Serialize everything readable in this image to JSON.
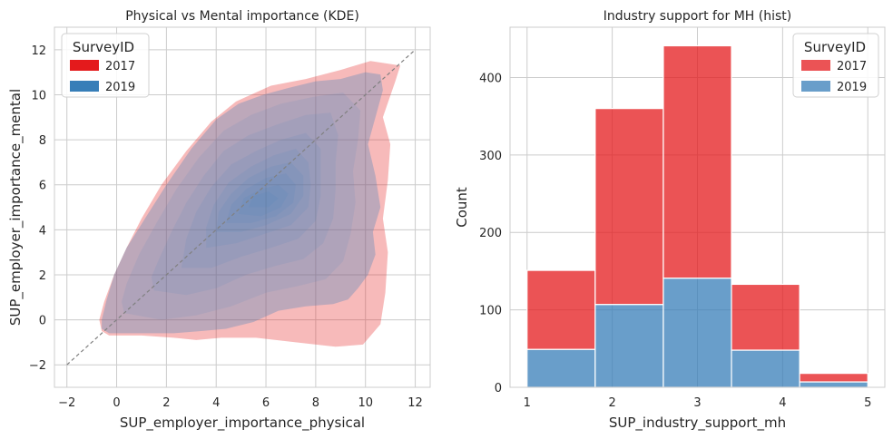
{
  "chart_data": [
    {
      "type": "kde",
      "title": "Physical vs Mental importance (KDE)",
      "xlabel": "SUP_employer_importance_physical",
      "ylabel": "SUP_employer_importance_mental",
      "xlim": [
        -2.5,
        12.6
      ],
      "ylim": [
        -3.0,
        13.0
      ],
      "xticks": [
        -2,
        0,
        2,
        4,
        6,
        8,
        10,
        12
      ],
      "yticks": [
        -2,
        0,
        2,
        4,
        6,
        8,
        10,
        12
      ],
      "grid": true,
      "legend": {
        "title": "SurveyID",
        "position": "top-left",
        "entries": [
          "2017",
          "2019"
        ]
      },
      "reference_line": {
        "from": [
          -2,
          -2
        ],
        "to": [
          12,
          12
        ],
        "style": "dashed",
        "color": "#808080"
      },
      "series": [
        {
          "name": "2017",
          "color": "#e41a1c",
          "levels": [
            {
              "opacity": 0.3,
              "points": [
                [
                  -0.3,
                  -0.7
                ],
                [
                  1.0,
                  -0.7
                ],
                [
                  2.3,
                  -0.8
                ],
                [
                  3.2,
                  -0.9
                ],
                [
                  4.2,
                  -0.8
                ],
                [
                  5.6,
                  -0.8
                ],
                [
                  7.2,
                  -1.0
                ],
                [
                  8.8,
                  -1.2
                ],
                [
                  9.9,
                  -1.1
                ],
                [
                  10.6,
                  -0.2
                ],
                [
                  10.8,
                  1.2
                ],
                [
                  10.9,
                  3.0
                ],
                [
                  10.7,
                  4.5
                ],
                [
                  10.9,
                  6.2
                ],
                [
                  11.0,
                  7.8
                ],
                [
                  10.7,
                  9.0
                ],
                [
                  11.2,
                  10.6
                ],
                [
                  11.4,
                  11.3
                ],
                [
                  10.2,
                  11.5
                ],
                [
                  9.0,
                  11.1
                ],
                [
                  7.6,
                  10.7
                ],
                [
                  6.2,
                  10.4
                ],
                [
                  4.8,
                  9.7
                ],
                [
                  3.8,
                  8.8
                ],
                [
                  2.8,
                  7.5
                ],
                [
                  1.8,
                  6.0
                ],
                [
                  1.0,
                  4.5
                ],
                [
                  0.4,
                  3.2
                ],
                [
                  -0.1,
                  2.0
                ],
                [
                  -0.5,
                  0.8
                ],
                [
                  -0.7,
                  0.0
                ],
                [
                  -0.6,
                  -0.5
                ]
              ]
            }
          ]
        },
        {
          "name": "2019",
          "color": "#377eb8",
          "levels": [
            {
              "opacity": 0.3,
              "points": [
                [
                  -0.3,
                  -0.6
                ],
                [
                  1.0,
                  -0.6
                ],
                [
                  2.3,
                  -0.6
                ],
                [
                  3.4,
                  -0.5
                ],
                [
                  4.4,
                  -0.4
                ],
                [
                  5.5,
                  -0.1
                ],
                [
                  6.5,
                  0.4
                ],
                [
                  7.6,
                  0.6
                ],
                [
                  8.7,
                  0.7
                ],
                [
                  9.3,
                  0.9
                ],
                [
                  9.7,
                  1.4
                ],
                [
                  10.1,
                  2.0
                ],
                [
                  10.4,
                  2.9
                ],
                [
                  10.3,
                  3.9
                ],
                [
                  10.6,
                  5.0
                ],
                [
                  10.4,
                  6.4
                ],
                [
                  10.1,
                  7.8
                ],
                [
                  10.4,
                  9.0
                ],
                [
                  10.7,
                  10.2
                ],
                [
                  10.6,
                  10.9
                ],
                [
                  10.0,
                  11.0
                ],
                [
                  9.0,
                  10.7
                ],
                [
                  8.0,
                  10.6
                ],
                [
                  6.9,
                  10.3
                ],
                [
                  5.9,
                  10.0
                ],
                [
                  4.9,
                  9.6
                ],
                [
                  4.0,
                  8.9
                ],
                [
                  3.0,
                  7.6
                ],
                [
                  2.0,
                  6.0
                ],
                [
                  1.2,
                  4.6
                ],
                [
                  0.4,
                  3.2
                ],
                [
                  -0.1,
                  2.0
                ],
                [
                  -0.4,
                  0.9
                ],
                [
                  -0.6,
                  0.0
                ],
                [
                  -0.6,
                  -0.4
                ]
              ]
            },
            {
              "opacity": 0.1,
              "points": [
                [
                  0.3,
                  0.3
                ],
                [
                  1.8,
                  0.0
                ],
                [
                  3.2,
                  0.2
                ],
                [
                  4.6,
                  0.6
                ],
                [
                  6.0,
                  1.2
                ],
                [
                  7.3,
                  1.5
                ],
                [
                  8.4,
                  1.8
                ],
                [
                  9.1,
                  2.6
                ],
                [
                  9.4,
                  3.8
                ],
                [
                  9.6,
                  5.2
                ],
                [
                  9.5,
                  6.6
                ],
                [
                  9.7,
                  8.0
                ],
                [
                  9.8,
                  9.3
                ],
                [
                  9.1,
                  10.1
                ],
                [
                  7.9,
                  9.9
                ],
                [
                  6.6,
                  9.6
                ],
                [
                  5.4,
                  9.1
                ],
                [
                  4.3,
                  8.4
                ],
                [
                  3.3,
                  7.2
                ],
                [
                  2.4,
                  5.8
                ],
                [
                  1.6,
                  4.3
                ],
                [
                  0.9,
                  2.9
                ],
                [
                  0.4,
                  1.6
                ],
                [
                  0.2,
                  0.8
                ]
              ]
            },
            {
              "opacity": 0.1,
              "points": [
                [
                  1.5,
                  1.3
                ],
                [
                  2.8,
                  1.1
                ],
                [
                  4.0,
                  1.4
                ],
                [
                  5.2,
                  2.0
                ],
                [
                  6.4,
                  2.4
                ],
                [
                  7.5,
                  2.7
                ],
                [
                  8.3,
                  3.4
                ],
                [
                  8.7,
                  4.5
                ],
                [
                  8.8,
                  5.8
                ],
                [
                  8.8,
                  7.0
                ],
                [
                  8.9,
                  8.2
                ],
                [
                  8.6,
                  9.2
                ],
                [
                  7.6,
                  9.1
                ],
                [
                  6.5,
                  8.7
                ],
                [
                  5.3,
                  8.2
                ],
                [
                  4.3,
                  7.5
                ],
                [
                  3.5,
                  6.4
                ],
                [
                  2.8,
                  5.2
                ],
                [
                  2.2,
                  3.9
                ],
                [
                  1.7,
                  2.7
                ],
                [
                  1.4,
                  1.9
                ]
              ]
            },
            {
              "opacity": 0.1,
              "points": [
                [
                  2.6,
                  2.3
                ],
                [
                  3.8,
                  2.3
                ],
                [
                  5.0,
                  2.8
                ],
                [
                  6.2,
                  3.2
                ],
                [
                  7.3,
                  3.6
                ],
                [
                  8.0,
                  4.4
                ],
                [
                  8.2,
                  5.5
                ],
                [
                  8.2,
                  6.6
                ],
                [
                  8.2,
                  7.6
                ],
                [
                  7.6,
                  8.3
                ],
                [
                  6.6,
                  8.0
                ],
                [
                  5.6,
                  7.5
                ],
                [
                  4.6,
                  6.9
                ],
                [
                  3.8,
                  5.9
                ],
                [
                  3.2,
                  4.8
                ],
                [
                  2.8,
                  3.6
                ]
              ]
            },
            {
              "opacity": 0.1,
              "points": [
                [
                  3.6,
                  3.2
                ],
                [
                  4.8,
                  3.4
                ],
                [
                  5.9,
                  3.8
                ],
                [
                  7.0,
                  4.2
                ],
                [
                  7.7,
                  5.0
                ],
                [
                  7.8,
                  6.0
                ],
                [
                  7.7,
                  7.0
                ],
                [
                  7.2,
                  7.6
                ],
                [
                  6.3,
                  7.3
                ],
                [
                  5.4,
                  6.8
                ],
                [
                  4.5,
                  6.1
                ],
                [
                  3.9,
                  5.1
                ],
                [
                  3.6,
                  4.1
                ]
              ]
            },
            {
              "opacity": 0.1,
              "points": [
                [
                  4.0,
                  3.9
                ],
                [
                  5.0,
                  3.9
                ],
                [
                  6.0,
                  4.2
                ],
                [
                  7.0,
                  4.7
                ],
                [
                  7.5,
                  5.5
                ],
                [
                  7.5,
                  6.4
                ],
                [
                  7.0,
                  7.0
                ],
                [
                  6.2,
                  6.8
                ],
                [
                  5.3,
                  6.3
                ],
                [
                  4.6,
                  5.6
                ],
                [
                  4.1,
                  4.8
                ]
              ]
            },
            {
              "opacity": 0.1,
              "points": [
                [
                  4.4,
                  4.3
                ],
                [
                  5.4,
                  4.3
                ],
                [
                  6.4,
                  4.6
                ],
                [
                  7.1,
                  5.2
                ],
                [
                  7.2,
                  6.0
                ],
                [
                  6.8,
                  6.5
                ],
                [
                  6.0,
                  6.3
                ],
                [
                  5.2,
                  5.8
                ],
                [
                  4.6,
                  5.1
                ]
              ]
            },
            {
              "opacity": 0.1,
              "points": [
                [
                  4.9,
                  4.7
                ],
                [
                  5.8,
                  4.6
                ],
                [
                  6.6,
                  5.0
                ],
                [
                  6.9,
                  5.6
                ],
                [
                  6.5,
                  6.0
                ],
                [
                  5.8,
                  5.8
                ],
                [
                  5.1,
                  5.4
                ]
              ]
            },
            {
              "opacity": 0.1,
              "points": [
                [
                  5.3,
                  5.0
                ],
                [
                  6.1,
                  5.0
                ],
                [
                  6.5,
                  5.4
                ],
                [
                  6.1,
                  5.7
                ],
                [
                  5.5,
                  5.5
                ]
              ]
            }
          ]
        }
      ]
    },
    {
      "type": "bar",
      "stacked": true,
      "title": "Industry support for MH (hist)",
      "xlabel": "SUP_industry_support_mh",
      "ylabel": "Count",
      "xlim": [
        0.8,
        5.2
      ],
      "ylim": [
        0,
        465
      ],
      "xticks": [
        1,
        2,
        3,
        4,
        5
      ],
      "yticks": [
        0,
        100,
        200,
        300,
        400
      ],
      "grid": true,
      "bin_edges": [
        1.0,
        1.8,
        2.6,
        3.4,
        4.2,
        5.0
      ],
      "legend": {
        "title": "SurveyID",
        "position": "top-right",
        "entries": [
          "2017",
          "2019"
        ]
      },
      "series": [
        {
          "name": "2019",
          "color": "#377eb8",
          "values": [
            49,
            107,
            141,
            48,
            7
          ]
        },
        {
          "name": "2017",
          "color": "#e41a1c",
          "values": [
            102,
            253,
            300,
            85,
            11
          ]
        }
      ]
    }
  ]
}
